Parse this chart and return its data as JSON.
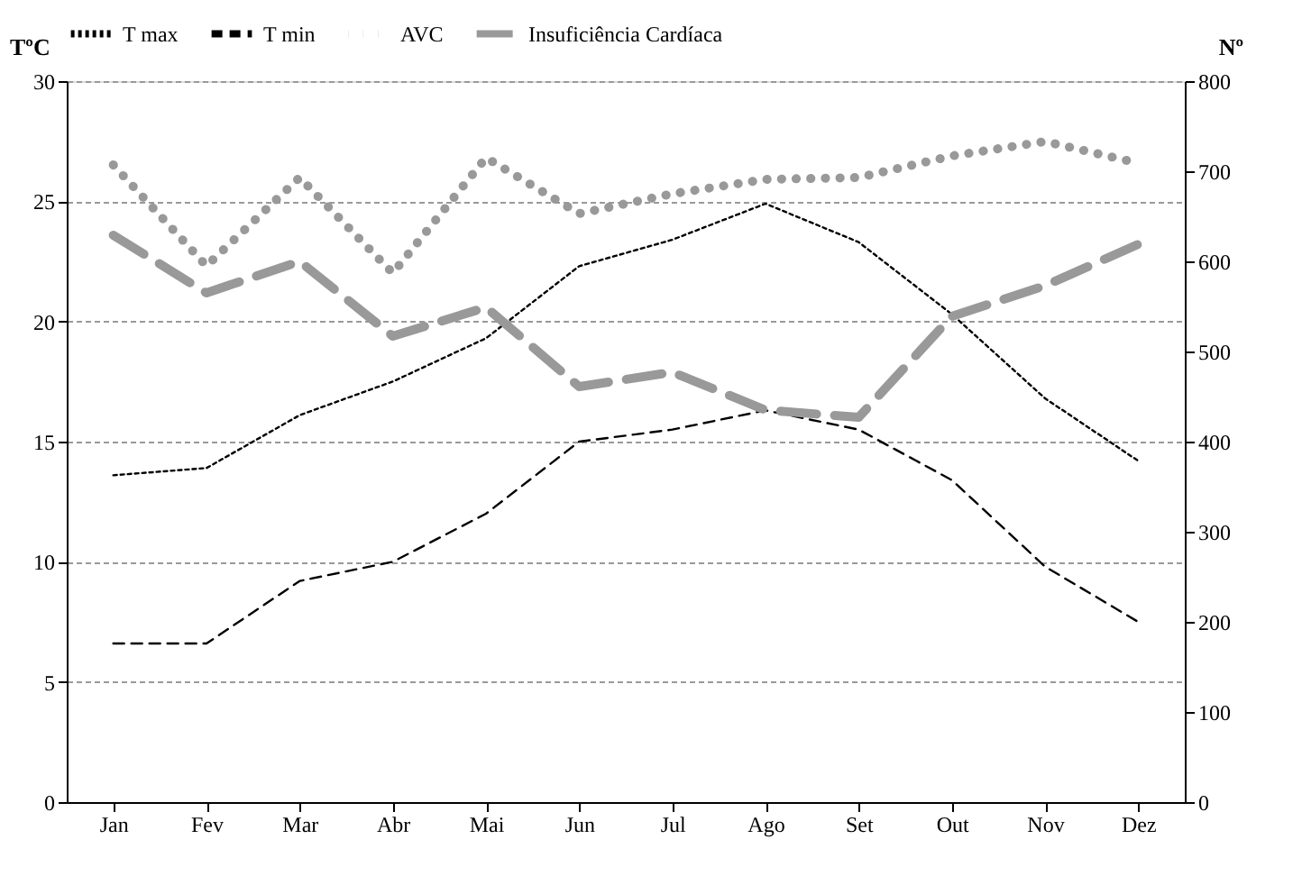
{
  "chart_data": {
    "type": "line",
    "categories": [
      "Jan",
      "Fev",
      "Mar",
      "Abr",
      "Mai",
      "Jun",
      "Jul",
      "Ago",
      "Set",
      "Out",
      "Nov",
      "Dez"
    ],
    "series": [
      {
        "name": "T max",
        "color": "#000000",
        "line_style": "dotted",
        "axis": "y",
        "values": [
          13.6,
          13.9,
          16.1,
          17.5,
          19.3,
          22.3,
          23.4,
          24.9,
          23.3,
          20.3,
          16.8,
          14.2
        ]
      },
      {
        "name": "T min",
        "color": "#000000",
        "line_style": "dashed",
        "axis": "y",
        "values": [
          6.6,
          6.6,
          9.2,
          10.0,
          12.0,
          15.0,
          15.5,
          16.3,
          15.5,
          13.4,
          9.8,
          7.5
        ]
      },
      {
        "name": "AVC",
        "color": "#999999",
        "line_style": "dotted",
        "axis": "y2",
        "values": [
          707,
          595,
          693,
          587,
          715,
          653,
          675,
          691,
          693,
          717,
          733,
          709
        ]
      },
      {
        "name": "Insuficiência Cardíaca",
        "color": "#999999",
        "line_style": "dashed",
        "axis": "y2",
        "values": [
          629,
          565,
          600,
          517,
          549,
          461,
          477,
          435,
          427,
          539,
          573,
          619
        ]
      }
    ],
    "ylabel": "TºC",
    "y2label": "Nº",
    "ylim": [
      0,
      30
    ],
    "yticks": [
      0,
      5,
      10,
      15,
      20,
      25,
      30
    ],
    "y2lim": [
      0,
      800
    ],
    "y2ticks": [
      0,
      100,
      200,
      300,
      400,
      500,
      600,
      700,
      800
    ],
    "grid": "y",
    "legend": "top"
  }
}
